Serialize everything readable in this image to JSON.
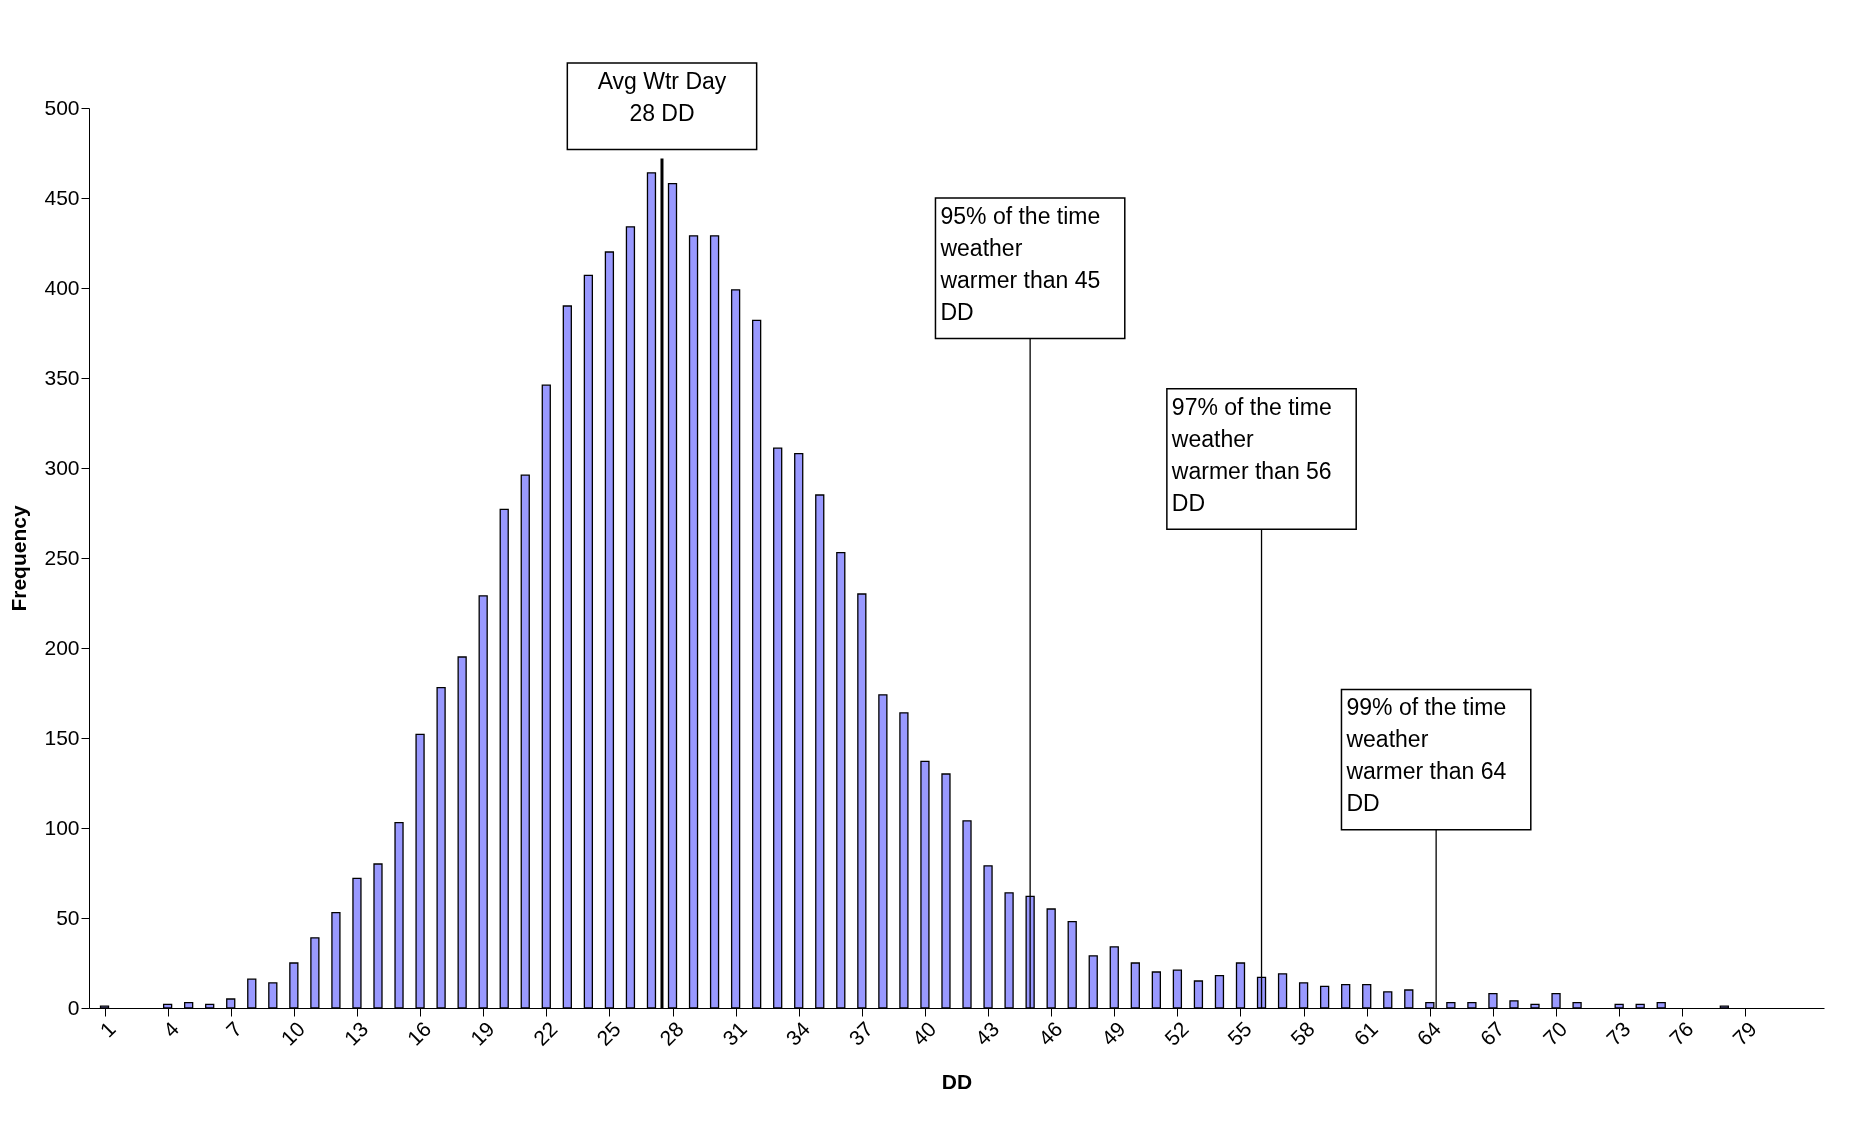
{
  "chart_data": {
    "type": "bar",
    "xlabel": "DD",
    "ylabel": "Frequency",
    "color": "#9999ff",
    "x": [
      1,
      2,
      3,
      4,
      5,
      6,
      7,
      8,
      9,
      10,
      11,
      12,
      13,
      14,
      15,
      16,
      17,
      18,
      19,
      20,
      21,
      22,
      23,
      24,
      25,
      26,
      27,
      28,
      29,
      30,
      31,
      32,
      33,
      34,
      35,
      36,
      37,
      38,
      39,
      40,
      41,
      42,
      43,
      44,
      45,
      46,
      47,
      48,
      49,
      50,
      51,
      52,
      53,
      54,
      55,
      56,
      57,
      58,
      59,
      60,
      61,
      62,
      63,
      64,
      65,
      66,
      67,
      68,
      69,
      70,
      71,
      72,
      73,
      74,
      75,
      76,
      77,
      78,
      79,
      80,
      81,
      82
    ],
    "values": [
      1,
      0,
      0,
      2,
      3,
      2,
      5,
      16,
      14,
      25,
      39,
      53,
      72,
      80,
      103,
      152,
      178,
      195,
      229,
      277,
      296,
      346,
      390,
      407,
      420,
      434,
      464,
      458,
      429,
      429,
      399,
      382,
      311,
      308,
      285,
      253,
      230,
      174,
      164,
      137,
      130,
      104,
      79,
      64,
      62,
      55,
      48,
      29,
      34,
      25,
      20,
      21,
      15,
      18,
      25,
      17,
      19,
      14,
      12,
      13,
      13,
      9,
      10,
      3,
      3,
      3,
      8,
      4,
      2,
      8,
      3,
      0,
      2,
      2,
      3,
      0,
      0,
      1,
      0,
      0,
      0,
      0
    ],
    "xlim": [
      0.5,
      82.5
    ],
    "xticks": [
      1,
      4,
      7,
      10,
      13,
      16,
      19,
      22,
      25,
      28,
      31,
      34,
      37,
      40,
      43,
      46,
      49,
      52,
      55,
      58,
      61,
      64,
      67,
      70,
      73,
      76,
      79
    ],
    "ylim": [
      0,
      500
    ],
    "yticks": [
      0,
      50,
      100,
      150,
      200,
      250,
      300,
      350,
      400,
      450,
      500
    ],
    "grid": false,
    "ref_lines": [
      {
        "axis": "x",
        "value": 27.5,
        "label": "Avg Wtr Day 28 DD"
      },
      {
        "axis": "x",
        "value": 45
      },
      {
        "axis": "x",
        "value": 56
      },
      {
        "axis": "x",
        "value": 64.3
      }
    ],
    "annotations": [
      "95% of the time weather warmer than 45 DD",
      "97% of the time weather warmer than 56 DD",
      "99% of the time weather warmer than 64 DD"
    ]
  }
}
